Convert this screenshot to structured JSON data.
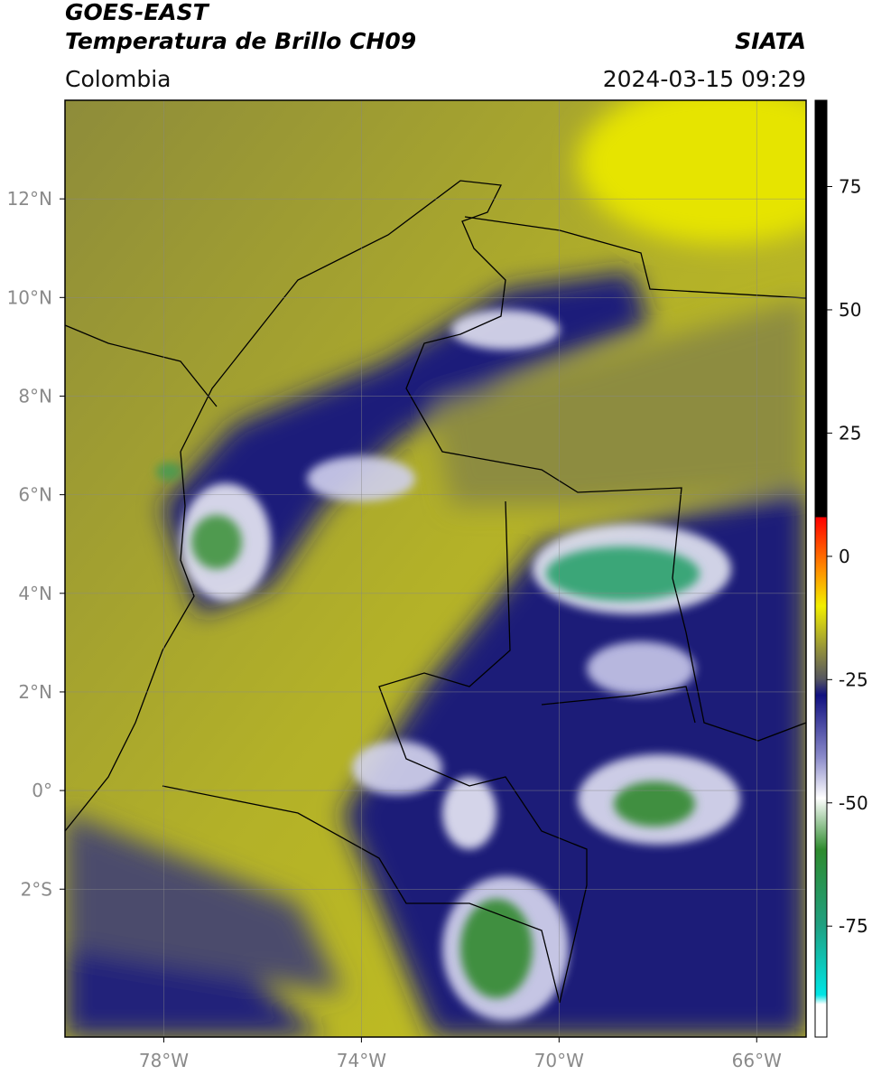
{
  "header": {
    "title": "GOES-EAST",
    "subtitle": "Temperatura de Brillo CH09",
    "source": "SIATA",
    "region": "Colombia",
    "datetime": "2024-03-15 09:29"
  },
  "map": {
    "xlim": [
      -80,
      -65
    ],
    "ylim": [
      -5,
      14
    ],
    "grid": true,
    "xticks": [
      {
        "value": -78,
        "label": "78°W"
      },
      {
        "value": -74,
        "label": "74°W"
      },
      {
        "value": -70,
        "label": "70°W"
      },
      {
        "value": -66,
        "label": "66°W"
      }
    ],
    "yticks": [
      {
        "value": 12,
        "label": "12°N"
      },
      {
        "value": 10,
        "label": "10°N"
      },
      {
        "value": 8,
        "label": "8°N"
      },
      {
        "value": 6,
        "label": "6°N"
      },
      {
        "value": 4,
        "label": "4°N"
      },
      {
        "value": 2,
        "label": "2°N"
      },
      {
        "value": 0,
        "label": "0°"
      },
      {
        "value": -2,
        "label": "2°S"
      }
    ]
  },
  "colorbar": {
    "lim": [
      -97.5,
      92.5
    ],
    "ticks": [
      75,
      50,
      25,
      0,
      -25,
      -50,
      -75
    ]
  }
}
